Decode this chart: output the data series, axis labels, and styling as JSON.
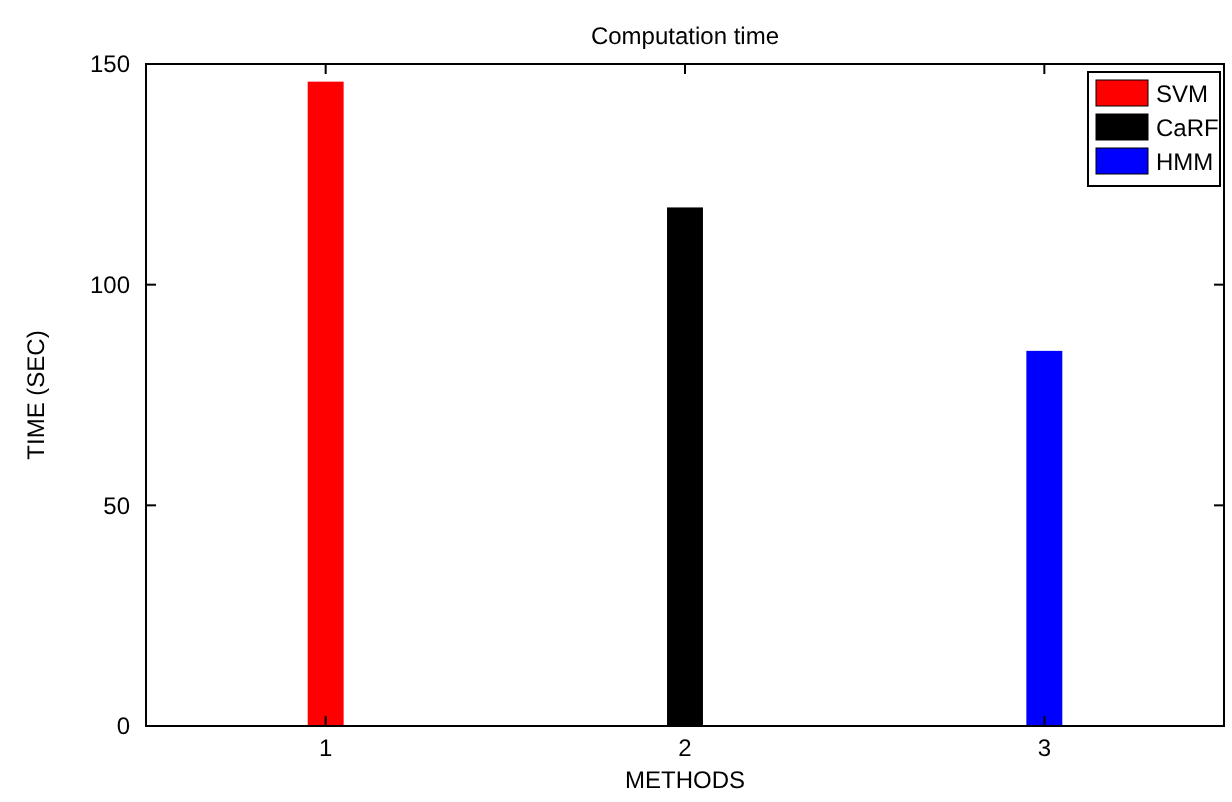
{
  "chart_data": {
    "type": "bar",
    "title": "Computation time",
    "xlabel": "METHODS",
    "ylabel": "TIME (SEC)",
    "categories": [
      "1",
      "2",
      "3"
    ],
    "series": [
      {
        "name": "SVM",
        "color": "#ff0000",
        "values": [
          146,
          null,
          null
        ]
      },
      {
        "name": "CaRF",
        "color": "#000000",
        "values": [
          null,
          117.5,
          null
        ]
      },
      {
        "name": "HMM",
        "color": "#0000ff",
        "values": [
          null,
          null,
          85
        ]
      }
    ],
    "ylim": [
      0,
      150
    ],
    "yticks": [
      0,
      50,
      100,
      150
    ],
    "grid": false,
    "legend": "top right"
  }
}
